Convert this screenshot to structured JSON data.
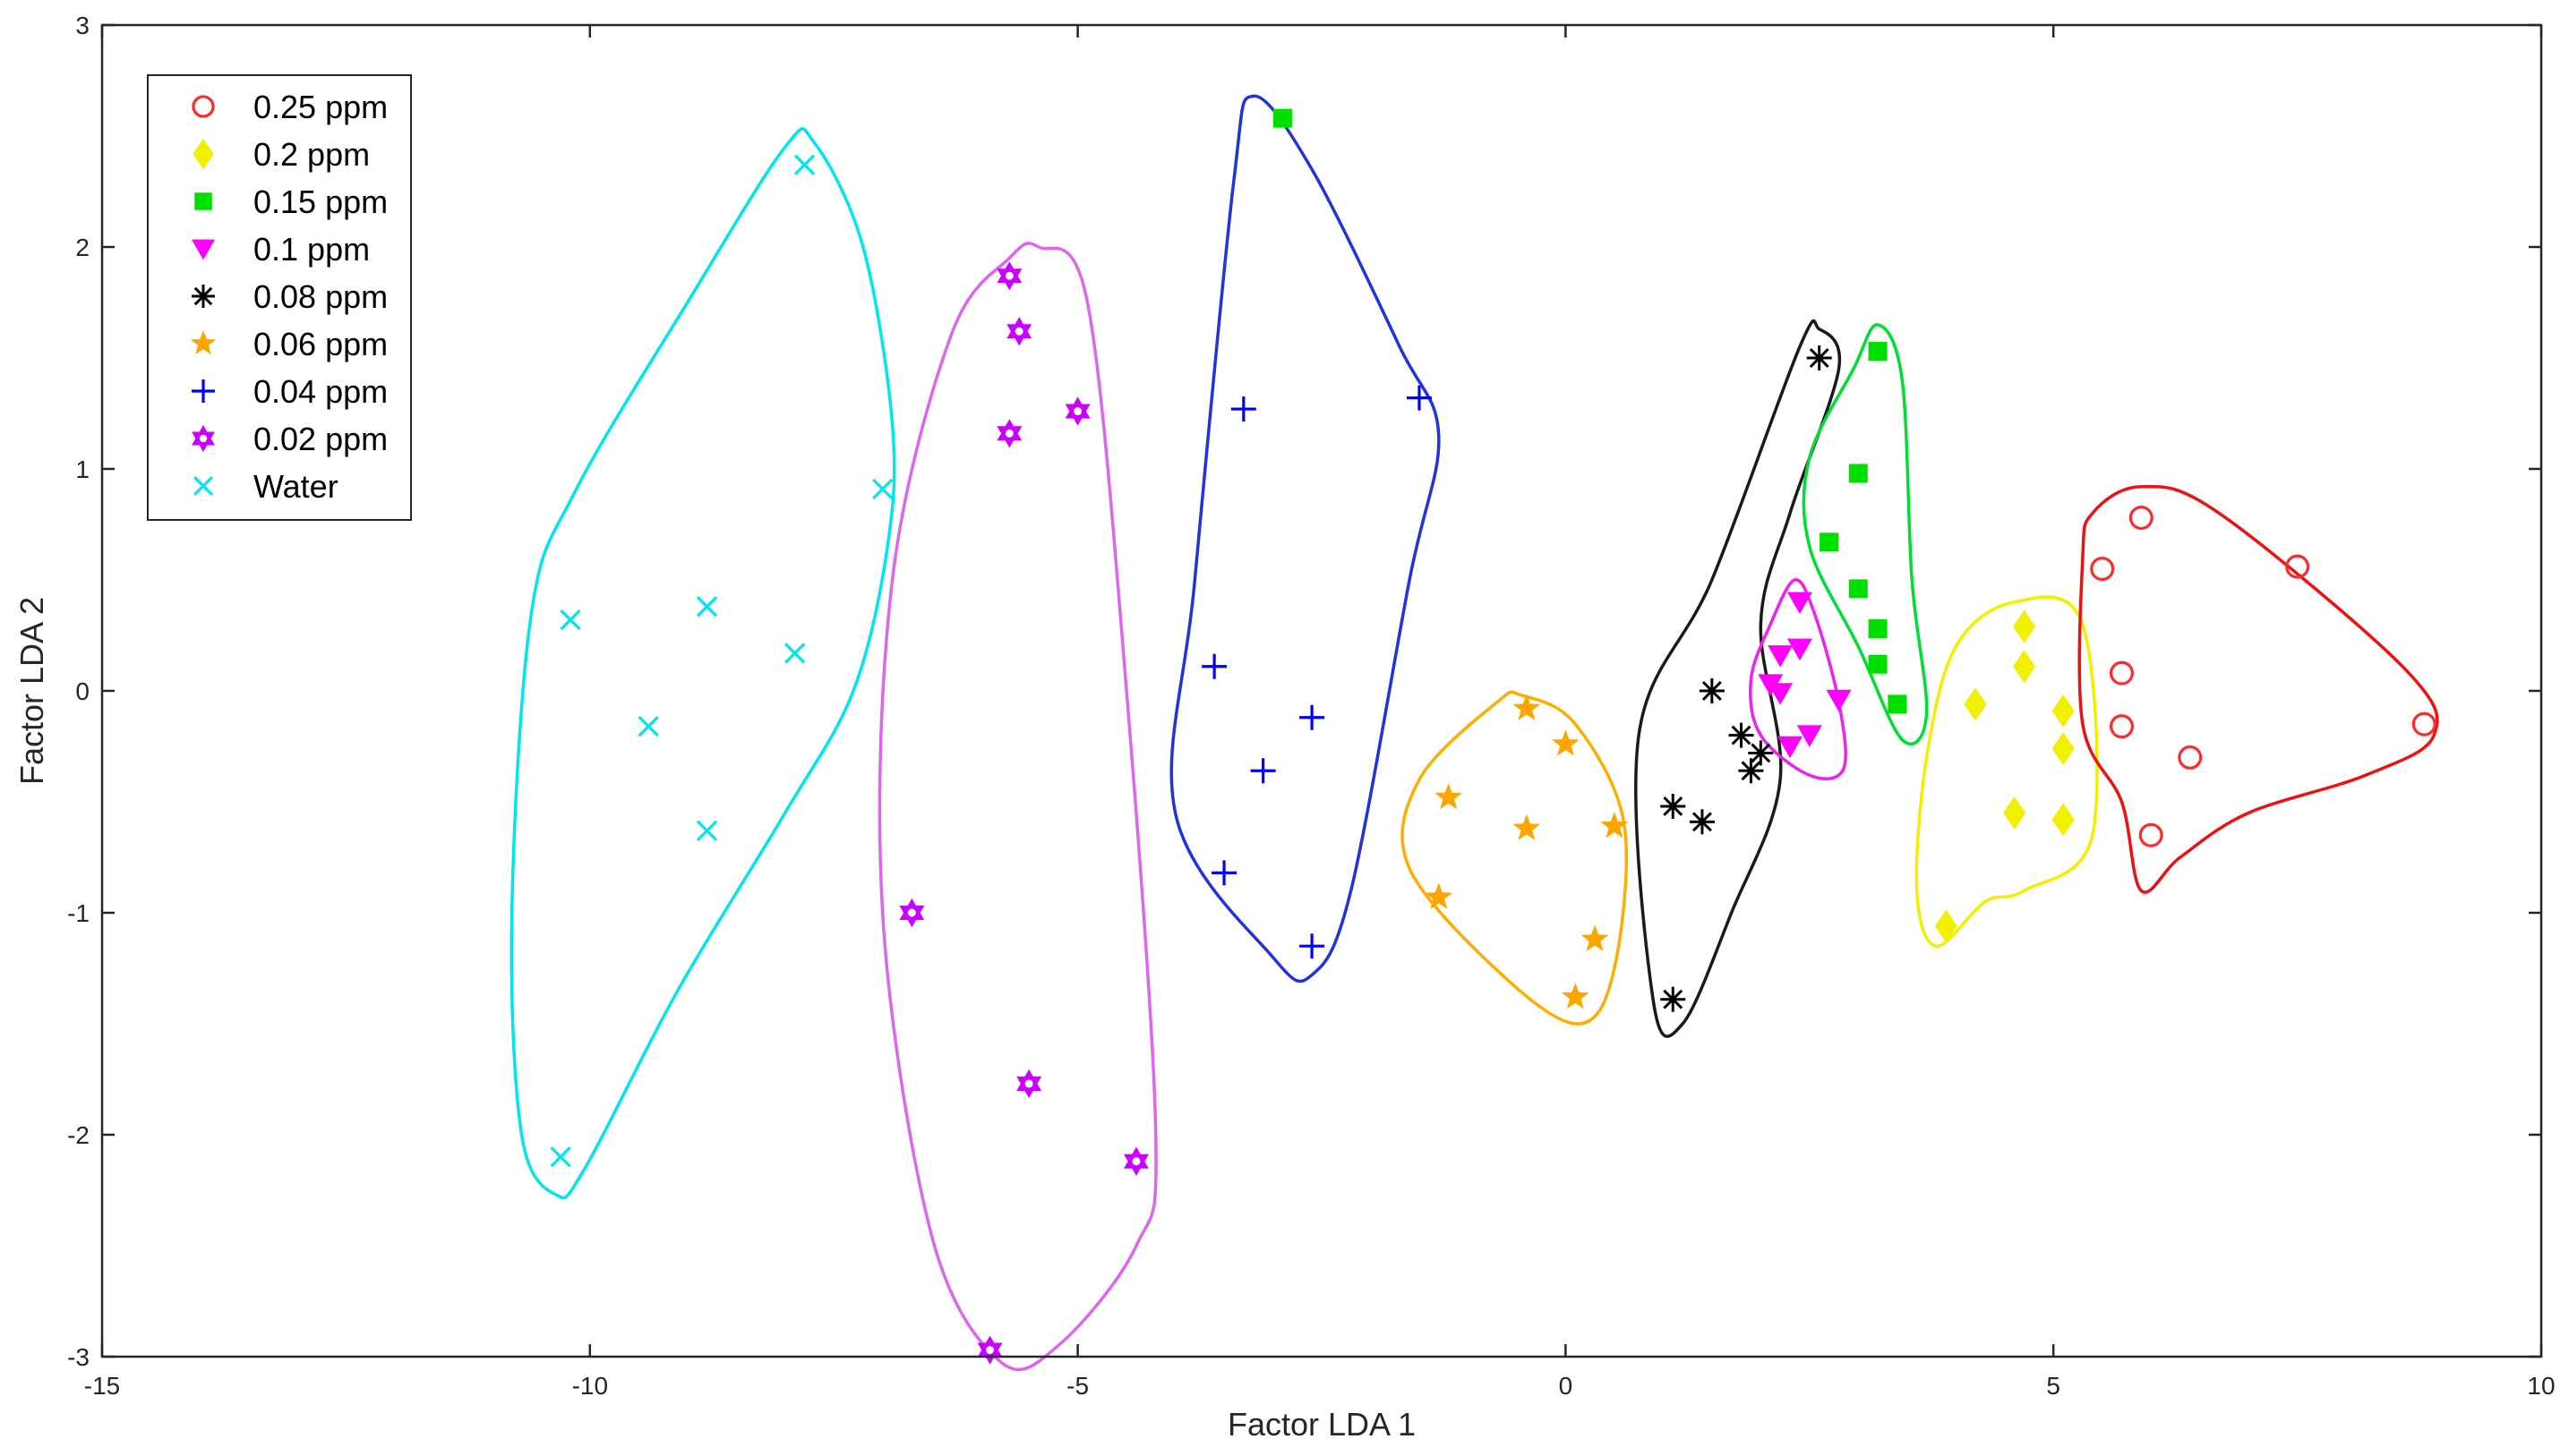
{
  "chart_data": {
    "type": "scatter",
    "xlabel": "Factor LDA 1",
    "ylabel": "Factor LDA 2",
    "xlim": [
      -15,
      10
    ],
    "ylim": [
      -3,
      3
    ],
    "xticks": [
      -15,
      -10,
      -5,
      0,
      5,
      10
    ],
    "yticks": [
      -3,
      -2,
      -1,
      0,
      1,
      2,
      3
    ],
    "xtick_labels": [
      "-15",
      "-10",
      "-5",
      "0",
      "5",
      "10"
    ],
    "ytick_labels": [
      "-3",
      "-2",
      "-1",
      "0",
      "1",
      "2",
      "3"
    ],
    "grid": false,
    "legend_position": "top-left",
    "series": [
      {
        "name": "0.25 ppm",
        "color": "#ff2a2a",
        "marker": "circle-open",
        "points": [
          [
            5.5,
            0.55
          ],
          [
            5.9,
            0.78
          ],
          [
            7.5,
            0.56
          ],
          [
            5.7,
            0.08
          ],
          [
            5.7,
            -0.16
          ],
          [
            6.4,
            -0.3
          ],
          [
            8.8,
            -0.15
          ],
          [
            6.0,
            -0.65
          ]
        ]
      },
      {
        "name": "0.2 ppm",
        "color": "#f0f000",
        "marker": "diamond",
        "points": [
          [
            4.7,
            0.29
          ],
          [
            4.2,
            -0.06
          ],
          [
            4.7,
            0.11
          ],
          [
            5.1,
            -0.09
          ],
          [
            5.1,
            -0.26
          ],
          [
            4.6,
            -0.55
          ],
          [
            5.1,
            -0.58
          ],
          [
            3.9,
            -1.06
          ]
        ]
      },
      {
        "name": "0.15 ppm",
        "color": "#00e000",
        "marker": "square",
        "points": [
          [
            3.2,
            1.53
          ],
          [
            3.0,
            0.98
          ],
          [
            2.7,
            0.67
          ],
          [
            3.0,
            0.46
          ],
          [
            3.2,
            0.28
          ],
          [
            3.2,
            0.12
          ],
          [
            3.4,
            -0.06
          ],
          [
            -2.9,
            2.58
          ]
        ]
      },
      {
        "name": "0.1 ppm",
        "color": "#ff00ff",
        "marker": "triangle-down",
        "points": [
          [
            2.4,
            0.4
          ],
          [
            2.2,
            0.16
          ],
          [
            2.4,
            0.19
          ],
          [
            2.1,
            0.03
          ],
          [
            2.2,
            -0.01
          ],
          [
            2.8,
            -0.04
          ],
          [
            2.5,
            -0.2
          ],
          [
            2.3,
            -0.25
          ]
        ]
      },
      {
        "name": "0.08 ppm",
        "color": "#000000",
        "marker": "asterisk",
        "points": [
          [
            2.6,
            1.5
          ],
          [
            1.5,
            0.0
          ],
          [
            1.8,
            -0.2
          ],
          [
            2.0,
            -0.28
          ],
          [
            1.9,
            -0.36
          ],
          [
            1.1,
            -0.52
          ],
          [
            1.4,
            -0.59
          ],
          [
            1.1,
            -1.39
          ]
        ]
      },
      {
        "name": "0.06 ppm",
        "color": "#ffa500",
        "marker": "star",
        "points": [
          [
            -0.4,
            -0.08
          ],
          [
            0.0,
            -0.24
          ],
          [
            -1.2,
            -0.48
          ],
          [
            -0.4,
            -0.62
          ],
          [
            0.5,
            -0.61
          ],
          [
            -1.3,
            -0.93
          ],
          [
            0.3,
            -1.12
          ],
          [
            0.1,
            -1.38
          ]
        ]
      },
      {
        "name": "0.04 ppm",
        "color": "#0000ff",
        "marker": "plus",
        "points": [
          [
            -3.3,
            1.27
          ],
          [
            -1.5,
            1.32
          ],
          [
            -3.6,
            0.11
          ],
          [
            -2.6,
            -0.12
          ],
          [
            -3.1,
            -0.36
          ],
          [
            -3.5,
            -0.82
          ],
          [
            -2.6,
            -1.15
          ]
        ]
      },
      {
        "name": "0.02 ppm",
        "color": "#cc00ff",
        "marker": "hexagram",
        "points": [
          [
            -5.7,
            1.87
          ],
          [
            -5.6,
            1.62
          ],
          [
            -5.0,
            1.26
          ],
          [
            -5.7,
            1.16
          ],
          [
            -6.7,
            -1.0
          ],
          [
            -5.5,
            -1.77
          ],
          [
            -4.4,
            -2.12
          ],
          [
            -5.9,
            -2.97
          ]
        ]
      },
      {
        "name": "Water",
        "color": "#00e5ee",
        "marker": "x",
        "points": [
          [
            -7.8,
            2.37
          ],
          [
            -7.0,
            0.91
          ],
          [
            -10.2,
            0.32
          ],
          [
            -8.8,
            0.38
          ],
          [
            -7.9,
            0.17
          ],
          [
            -9.4,
            -0.16
          ],
          [
            -8.8,
            -0.63
          ],
          [
            -10.3,
            -2.1
          ]
        ]
      }
    ],
    "enclosures": [
      {
        "color": "#00e5ee",
        "points": [
          [
            -7.7,
            2.47
          ],
          [
            -7.2,
            2.0
          ],
          [
            -6.9,
            1.2
          ],
          [
            -6.95,
            0.65
          ],
          [
            -7.3,
            0.0
          ],
          [
            -8.0,
            -0.55
          ],
          [
            -9.1,
            -1.35
          ],
          [
            -10.05,
            -2.15
          ],
          [
            -10.35,
            -2.27
          ],
          [
            -10.7,
            -2.0
          ],
          [
            -10.8,
            -1.0
          ],
          [
            -10.6,
            0.35
          ],
          [
            -10.15,
            0.9
          ],
          [
            -9.0,
            1.75
          ],
          [
            -8.0,
            2.45
          ]
        ]
      },
      {
        "color": "#dd66ee",
        "points": [
          [
            -5.4,
            2.0
          ],
          [
            -4.9,
            1.75
          ],
          [
            -4.5,
            0.0
          ],
          [
            -4.2,
            -2.0
          ],
          [
            -4.4,
            -2.5
          ],
          [
            -5.2,
            -2.95
          ],
          [
            -5.8,
            -3.02
          ],
          [
            -6.5,
            -2.45
          ],
          [
            -7.0,
            -1.0
          ],
          [
            -6.9,
            0.5
          ],
          [
            -6.3,
            1.6
          ],
          [
            -5.7,
            1.95
          ]
        ]
      },
      {
        "color": "#2233dd",
        "points": [
          [
            -3.2,
            2.68
          ],
          [
            -2.6,
            2.35
          ],
          [
            -1.7,
            1.55
          ],
          [
            -1.3,
            1.15
          ],
          [
            -1.6,
            0.5
          ],
          [
            -2.2,
            -0.9
          ],
          [
            -2.6,
            -1.28
          ],
          [
            -3.0,
            -1.2
          ],
          [
            -4.0,
            -0.55
          ],
          [
            -3.8,
            0.5
          ],
          [
            -3.4,
            2.3
          ]
        ]
      },
      {
        "color": "#ffae00",
        "points": [
          [
            -0.45,
            -0.02
          ],
          [
            0.1,
            -0.15
          ],
          [
            0.6,
            -0.6
          ],
          [
            0.5,
            -1.25
          ],
          [
            0.15,
            -1.5
          ],
          [
            -0.6,
            -1.3
          ],
          [
            -1.6,
            -0.8
          ],
          [
            -1.5,
            -0.4
          ],
          [
            -0.7,
            -0.05
          ]
        ]
      },
      {
        "color": "#1a1a1a",
        "points": [
          [
            2.6,
            1.63
          ],
          [
            2.8,
            1.45
          ],
          [
            2.3,
            0.8
          ],
          [
            2.0,
            0.3
          ],
          [
            2.2,
            -0.4
          ],
          [
            1.7,
            -1.0
          ],
          [
            1.2,
            -1.5
          ],
          [
            0.9,
            -1.4
          ],
          [
            0.75,
            -0.2
          ],
          [
            1.5,
            0.5
          ],
          [
            2.4,
            1.55
          ]
        ]
      },
      {
        "color": "#00dd33",
        "points": [
          [
            3.2,
            1.65
          ],
          [
            3.45,
            1.4
          ],
          [
            3.55,
            0.5
          ],
          [
            3.7,
            -0.1
          ],
          [
            3.45,
            -0.22
          ],
          [
            3.0,
            0.2
          ],
          [
            2.5,
            0.65
          ],
          [
            2.5,
            1.05
          ],
          [
            2.95,
            1.45
          ]
        ]
      },
      {
        "color": "#ee22ee",
        "points": [
          [
            2.35,
            0.5
          ],
          [
            2.55,
            0.35
          ],
          [
            2.8,
            -0.05
          ],
          [
            2.85,
            -0.35
          ],
          [
            2.5,
            -0.38
          ],
          [
            2.0,
            -0.2
          ],
          [
            1.9,
            0.05
          ],
          [
            2.1,
            0.3
          ]
        ]
      },
      {
        "color": "#f0f000",
        "points": [
          [
            4.6,
            0.4
          ],
          [
            5.3,
            0.3
          ],
          [
            5.4,
            -0.65
          ],
          [
            4.7,
            -0.9
          ],
          [
            4.3,
            -0.95
          ],
          [
            3.8,
            -1.15
          ],
          [
            3.6,
            -0.9
          ],
          [
            3.7,
            -0.3
          ],
          [
            4.0,
            0.2
          ]
        ]
      },
      {
        "color": "#ee1111",
        "points": [
          [
            5.9,
            0.92
          ],
          [
            6.7,
            0.8
          ],
          [
            8.6,
            0.1
          ],
          [
            8.9,
            -0.2
          ],
          [
            8.2,
            -0.38
          ],
          [
            7.0,
            -0.55
          ],
          [
            6.3,
            -0.75
          ],
          [
            5.9,
            -0.9
          ],
          [
            5.7,
            -0.5
          ],
          [
            5.3,
            -0.15
          ],
          [
            5.3,
            0.6
          ],
          [
            5.4,
            0.8
          ]
        ]
      }
    ]
  }
}
